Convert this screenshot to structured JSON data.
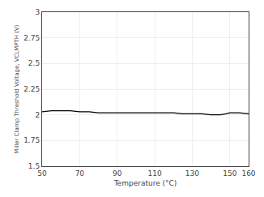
{
  "chart_data": {
    "type": "line",
    "xlabel": "Temperature (°C)",
    "ylabel": "Miller Clamp Threshold Voltage, VCLMPTH (V)",
    "x": [
      50,
      55,
      60,
      65,
      70,
      75,
      80,
      90,
      100,
      110,
      120,
      125,
      130,
      135,
      140,
      142,
      145,
      148,
      150,
      152,
      155,
      160
    ],
    "values": [
      2.03,
      2.04,
      2.04,
      2.04,
      2.03,
      2.03,
      2.02,
      2.02,
      2.02,
      2.02,
      2.02,
      2.01,
      2.01,
      2.01,
      2.0,
      2.0,
      2.0,
      2.01,
      2.02,
      2.02,
      2.02,
      2.01
    ],
    "color": "#000000",
    "xlim": [
      50,
      160
    ],
    "ylim": [
      1.5,
      3.0
    ],
    "xticks": [
      50,
      70,
      90,
      110,
      130,
      150,
      160
    ],
    "yticks": [
      1.5,
      1.75,
      2.0,
      2.25,
      2.5,
      2.75,
      3.0
    ],
    "grid": true
  }
}
